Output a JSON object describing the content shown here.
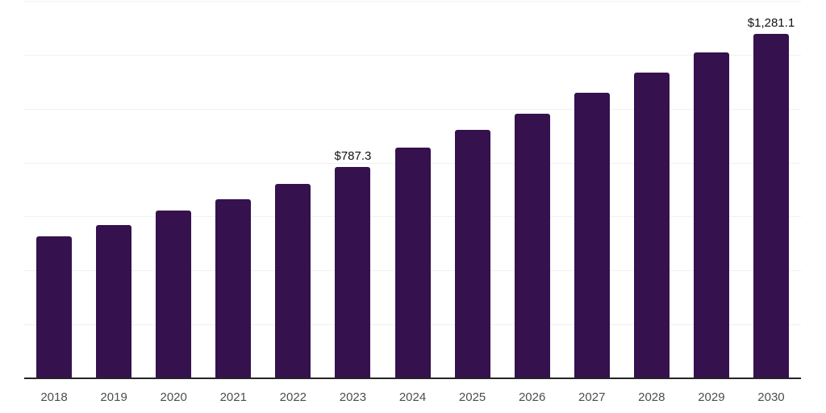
{
  "chart_data": {
    "type": "bar",
    "title": "",
    "xlabel": "",
    "ylabel": "",
    "categories": [
      "2018",
      "2019",
      "2020",
      "2021",
      "2022",
      "2023",
      "2024",
      "2025",
      "2026",
      "2027",
      "2028",
      "2029",
      "2030"
    ],
    "values": [
      529.3,
      570.3,
      625.0,
      668.0,
      722.6,
      787.3,
      859.1,
      923.6,
      985.4,
      1063.1,
      1136.8,
      1210.2,
      1281.1
    ],
    "labeled_points": [
      {
        "category": "2023",
        "label": "$787.3"
      },
      {
        "category": "2030",
        "label": "$1,281.1"
      }
    ],
    "ylim": [
      0,
      1400
    ],
    "gridline_step": 200,
    "grid": true,
    "legend": "none",
    "colors": {
      "bar": "#35114E",
      "gridline": "#f1f1f1",
      "axis_line": "#262626",
      "x_tick_label": "#4d4d4d",
      "data_label": "#111111",
      "background": "#ffffff"
    }
  }
}
